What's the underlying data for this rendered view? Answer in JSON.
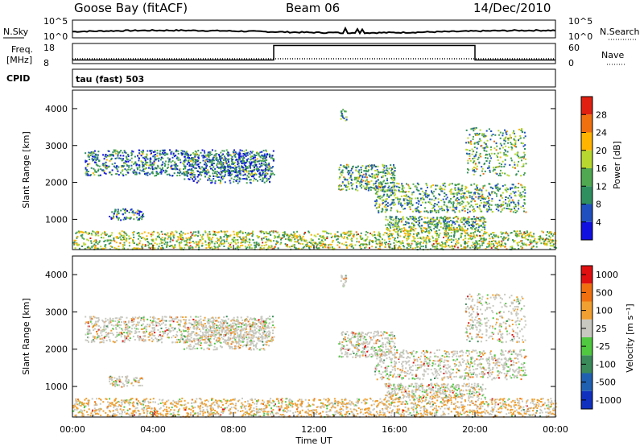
{
  "header": {
    "station": "Goose Bay (fitACF)",
    "beam": "Beam 06",
    "date": "14/Dec/2010"
  },
  "top_panels": {
    "nsky_label": "N.Sky",
    "nsky_ticks": [
      "10^5",
      "10^0"
    ],
    "nsearch_label": "N.Search",
    "nsearch_ticks": [
      "10^5",
      "10^0"
    ],
    "freq_label": "Freq.",
    "freq_unit": "[MHz]",
    "freq_ticks": [
      "18",
      "8"
    ],
    "nave_label": "Nave",
    "nave_ticks": [
      "60",
      "0"
    ],
    "cpid_label": "CPID",
    "cpid_value": "tau (fast) 503"
  },
  "chart_data": [
    {
      "type": "heatmap",
      "panel": "power",
      "ylabel": "Slant Range [km]",
      "yticks": [
        "1000",
        "2000",
        "3000",
        "4000"
      ],
      "ylim": [
        180,
        4500
      ],
      "xlim": [
        "00:00",
        "24:00"
      ],
      "colorbar_label": "Power [dB]",
      "colorbar_ticks": [
        "4",
        "8",
        "12",
        "16",
        "20",
        "24",
        "28"
      ],
      "colorbar_colors": [
        "#1010e0",
        "#2050c0",
        "#2f8f5f",
        "#50a850",
        "#b8d830",
        "#ffb400",
        "#f07010",
        "#e02010"
      ],
      "echo_regions": [
        {
          "t_start": 0.5,
          "t_end": 10.0,
          "r_start": 2200,
          "r_end": 2900
        },
        {
          "t_start": 13.2,
          "t_end": 22.5,
          "r_start": 1200,
          "r_end": 3300
        },
        {
          "t_start": 0.0,
          "t_end": 24.0,
          "r_start": 200,
          "r_end": 800
        }
      ]
    },
    {
      "type": "heatmap",
      "panel": "velocity",
      "ylabel": "Slant Range [km]",
      "yticks": [
        "1000",
        "2000",
        "3000",
        "4000"
      ],
      "ylim": [
        180,
        4500
      ],
      "xlim": [
        "00:00",
        "24:00"
      ],
      "xlabel": "Time UT",
      "xticks": [
        "00:00",
        "04:00",
        "08:00",
        "12:00",
        "16:00",
        "20:00",
        "00:00"
      ],
      "colorbar_label": "Velocity [m s⁻¹]",
      "colorbar_ticks": [
        "1000",
        "500",
        "100",
        "25",
        "-25",
        "-100",
        "-500",
        "-1000"
      ],
      "colorbar_colors": [
        "#1030c0",
        "#2060b0",
        "#3a8a5a",
        "#50c840",
        "#c8c8c0",
        "#f0a030",
        "#f07010",
        "#e01010"
      ]
    }
  ]
}
